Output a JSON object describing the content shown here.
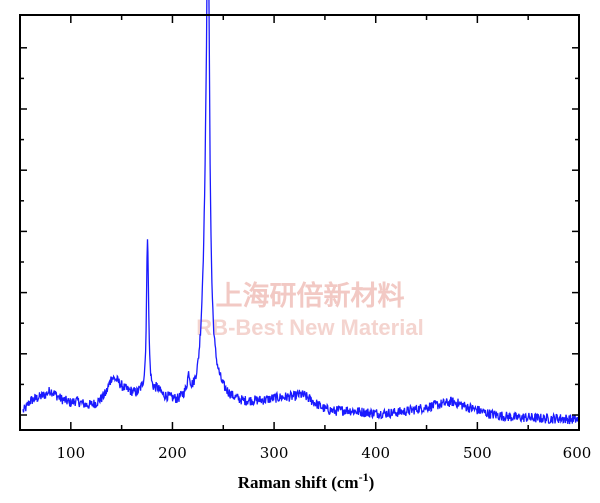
{
  "chart_data": {
    "type": "line",
    "title": "",
    "xlabel_main": "Raman shift (cm",
    "xlabel_sup": "-1",
    "xlabel_close": ")",
    "ylabel": "",
    "xlim": [
      50,
      600
    ],
    "ylim": [
      0,
      1
    ],
    "x_ticks": [
      "100",
      "200",
      "300",
      "400",
      "500",
      "600"
    ],
    "grid": false,
    "line_color": "#1a1aff",
    "baseline_points": [
      [
        50,
        0.04
      ],
      [
        55,
        0.05
      ],
      [
        60,
        0.07
      ],
      [
        65,
        0.075
      ],
      [
        70,
        0.08
      ],
      [
        75,
        0.085
      ],
      [
        80,
        0.095
      ],
      [
        85,
        0.085
      ],
      [
        90,
        0.075
      ],
      [
        95,
        0.07
      ],
      [
        100,
        0.065
      ],
      [
        105,
        0.07
      ],
      [
        110,
        0.065
      ],
      [
        115,
        0.06
      ],
      [
        120,
        0.06
      ],
      [
        125,
        0.065
      ],
      [
        130,
        0.075
      ],
      [
        135,
        0.09
      ],
      [
        140,
        0.125
      ],
      [
        145,
        0.12
      ],
      [
        150,
        0.105
      ],
      [
        155,
        0.095
      ],
      [
        160,
        0.09
      ],
      [
        165,
        0.085
      ],
      [
        170,
        0.09
      ],
      [
        180,
        0.085
      ],
      [
        185,
        0.095
      ],
      [
        190,
        0.08
      ],
      [
        195,
        0.075
      ],
      [
        200,
        0.07
      ],
      [
        205,
        0.065
      ],
      [
        210,
        0.07
      ],
      [
        215,
        0.075
      ],
      [
        220,
        0.068
      ],
      [
        225,
        0.07
      ],
      [
        230,
        0.09
      ],
      [
        245,
        0.09
      ],
      [
        250,
        0.08
      ],
      [
        255,
        0.075
      ],
      [
        260,
        0.07
      ],
      [
        270,
        0.065
      ],
      [
        280,
        0.068
      ],
      [
        290,
        0.07
      ],
      [
        300,
        0.075
      ],
      [
        310,
        0.078
      ],
      [
        320,
        0.08
      ],
      [
        325,
        0.085
      ],
      [
        330,
        0.082
      ],
      [
        340,
        0.065
      ],
      [
        350,
        0.05
      ],
      [
        360,
        0.045
      ],
      [
        370,
        0.048
      ],
      [
        380,
        0.045
      ],
      [
        390,
        0.042
      ],
      [
        400,
        0.04
      ],
      [
        410,
        0.04
      ],
      [
        420,
        0.042
      ],
      [
        430,
        0.045
      ],
      [
        440,
        0.05
      ],
      [
        450,
        0.055
      ],
      [
        460,
        0.06
      ],
      [
        470,
        0.065
      ],
      [
        475,
        0.068
      ],
      [
        480,
        0.065
      ],
      [
        490,
        0.055
      ],
      [
        500,
        0.048
      ],
      [
        510,
        0.04
      ],
      [
        520,
        0.035
      ],
      [
        530,
        0.032
      ],
      [
        540,
        0.03
      ],
      [
        550,
        0.03
      ],
      [
        560,
        0.028
      ],
      [
        570,
        0.027
      ],
      [
        580,
        0.028
      ],
      [
        590,
        0.026
      ],
      [
        600,
        0.025
      ]
    ],
    "peaks": [
      {
        "center": 175.5,
        "height": 0.38,
        "width": 1.2
      },
      {
        "center": 235,
        "height": 0.95,
        "width": 1.8
      },
      {
        "center": 233,
        "height": 0.3,
        "width": 4
      },
      {
        "center": 216,
        "height": 0.04,
        "width": 1.5
      }
    ],
    "noise_amplitude": 0.012
  },
  "watermark": {
    "line1": "上海研倍新材料",
    "line2": "RB-Best New Material"
  },
  "colors": {
    "axis": "#000000",
    "line": "#1a1aff",
    "watermark": "#f2c9c4"
  }
}
